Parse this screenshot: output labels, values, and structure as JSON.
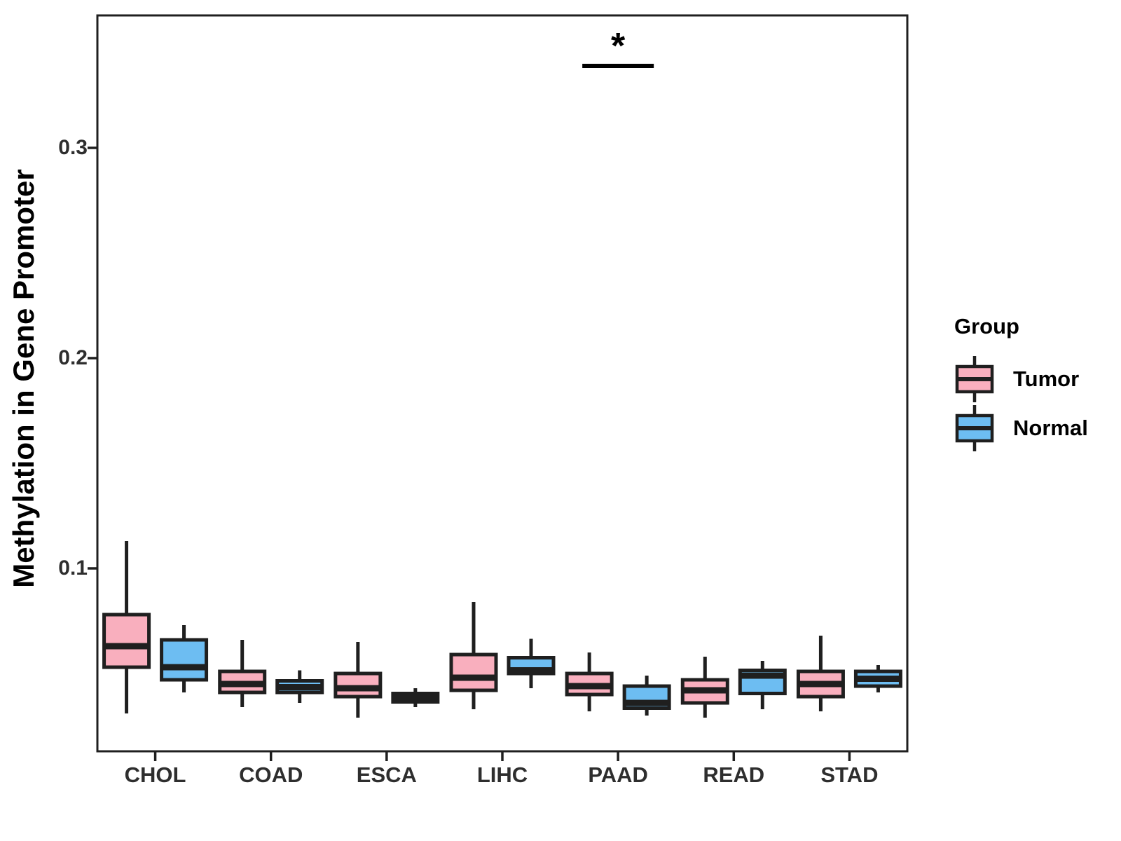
{
  "chart_data": {
    "type": "boxplot",
    "title": "",
    "xlabel": "",
    "ylabel": "Methylation in Gene Promoter",
    "categories": [
      "CHOL",
      "COAD",
      "ESCA",
      "LIHC",
      "PAAD",
      "READ",
      "STAD"
    ],
    "ylim": [
      0.013,
      0.363
    ],
    "yticks": [
      {
        "label": "0.3",
        "value": 0.3
      },
      {
        "label": "0.2",
        "value": 0.2
      },
      {
        "label": "0.1",
        "value": 0.1
      }
    ],
    "grid": "off",
    "legend_position": "right",
    "legend_title": "Group",
    "series": [
      {
        "name": "Tumor",
        "color": "#F9AFBE",
        "boxes": [
          {
            "min": 0.031,
            "q1": 0.053,
            "med": 0.063,
            "q3": 0.078,
            "max": 0.113
          },
          {
            "min": 0.034,
            "q1": 0.041,
            "med": 0.045,
            "q3": 0.051,
            "max": 0.066
          },
          {
            "min": 0.029,
            "q1": 0.039,
            "med": 0.043,
            "q3": 0.05,
            "max": 0.065
          },
          {
            "min": 0.033,
            "q1": 0.042,
            "med": 0.048,
            "q3": 0.059,
            "max": 0.084
          },
          {
            "min": 0.032,
            "q1": 0.04,
            "med": 0.044,
            "q3": 0.05,
            "max": 0.06
          },
          {
            "min": 0.029,
            "q1": 0.036,
            "med": 0.042,
            "q3": 0.047,
            "max": 0.058
          },
          {
            "min": 0.032,
            "q1": 0.039,
            "med": 0.045,
            "q3": 0.051,
            "max": 0.068
          }
        ]
      },
      {
        "name": "Normal",
        "color": "#6DBDF2",
        "boxes": [
          {
            "min": 0.041,
            "q1": 0.047,
            "med": 0.053,
            "q3": 0.066,
            "max": 0.073
          },
          {
            "min": 0.036,
            "q1": 0.041,
            "med": 0.0435,
            "q3": 0.0465,
            "max": 0.0515
          },
          {
            "min": 0.034,
            "q1": 0.0365,
            "med": 0.0385,
            "q3": 0.0405,
            "max": 0.043
          },
          {
            "min": 0.043,
            "q1": 0.05,
            "med": 0.0515,
            "q3": 0.0575,
            "max": 0.0665
          },
          {
            "min": 0.03,
            "q1": 0.0335,
            "med": 0.036,
            "q3": 0.044,
            "max": 0.049
          },
          {
            "min": 0.033,
            "q1": 0.0405,
            "med": 0.049,
            "q3": 0.0515,
            "max": 0.056
          },
          {
            "min": 0.041,
            "q1": 0.044,
            "med": 0.0475,
            "q3": 0.051,
            "max": 0.054
          }
        ]
      }
    ],
    "significance": {
      "category": "PAAD",
      "category_index": 4,
      "label": "*",
      "y_value": 0.339
    }
  }
}
